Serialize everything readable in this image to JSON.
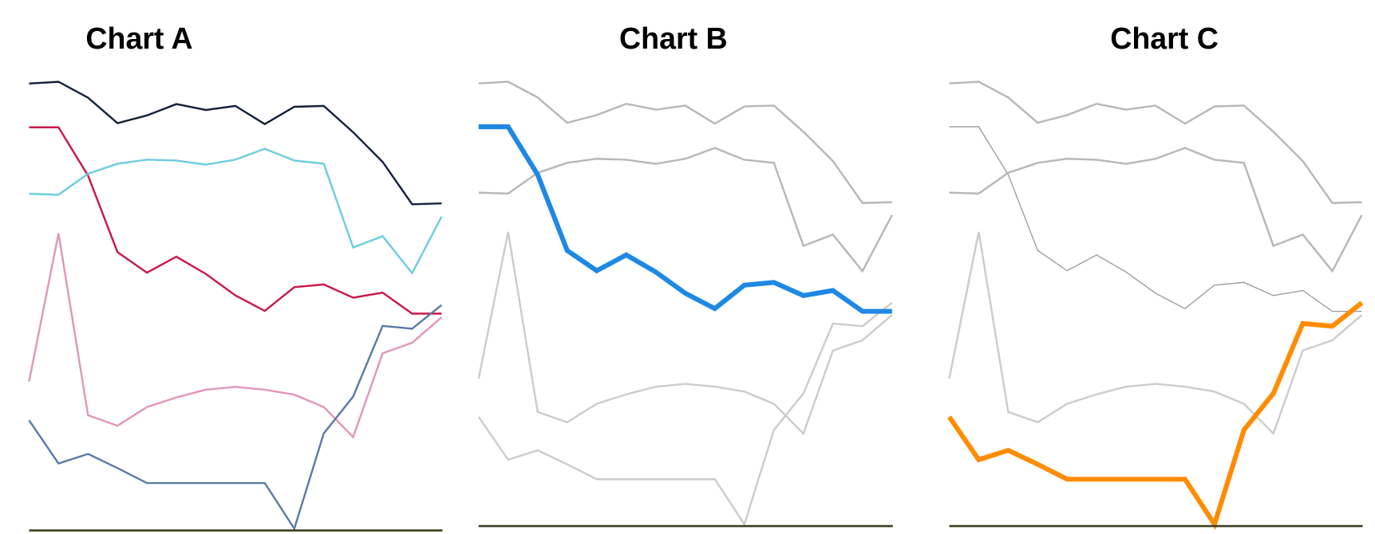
{
  "chart_data": [
    {
      "type": "line",
      "title": "Chart A",
      "xlabel": "",
      "ylabel": "",
      "x": [
        1,
        2,
        3,
        4,
        5,
        6,
        7,
        8,
        9,
        10,
        11,
        12,
        13,
        14,
        15
      ],
      "ylim": [
        0,
        100
      ],
      "grid": false,
      "legend": "none",
      "highlight": null,
      "series": [
        {
          "name": "navy",
          "color": "#14213d",
          "values": [
            98.1,
            98.5,
            95.0,
            89.4,
            91.1,
            93.6,
            92.3,
            93.2,
            89.2,
            93.0,
            93.2,
            87.4,
            80.9,
            71.6,
            71.8
          ]
        },
        {
          "name": "crimson",
          "color": "#c9184a",
          "values": [
            88.5,
            88.5,
            77.9,
            61.1,
            56.6,
            60.1,
            56.3,
            51.6,
            48.2,
            53.4,
            54.0,
            51.1,
            52.2,
            47.6,
            47.6
          ]
        },
        {
          "name": "cyan",
          "color": "#6ccde0",
          "values": [
            73.9,
            73.7,
            78.3,
            80.5,
            81.4,
            81.2,
            80.3,
            81.4,
            83.8,
            81.2,
            80.5,
            62.1,
            64.6,
            56.5,
            68.9
          ]
        },
        {
          "name": "pink",
          "color": "#e296bb",
          "values": [
            32.7,
            65.2,
            25.3,
            23.0,
            27.1,
            29.2,
            30.9,
            31.5,
            30.9,
            29.8,
            27.1,
            20.5,
            38.9,
            41.2,
            46.8
          ]
        },
        {
          "name": "slate",
          "color": "#5a7aa8",
          "values": [
            24.2,
            14.7,
            16.8,
            13.7,
            10.4,
            10.4,
            10.4,
            10.4,
            10.4,
            0.4,
            21.3,
            29.4,
            44.9,
            44.3,
            49.5
          ]
        }
      ]
    },
    {
      "type": "line",
      "title": "Chart B",
      "xlabel": "",
      "ylabel": "",
      "x": [
        1,
        2,
        3,
        4,
        5,
        6,
        7,
        8,
        9,
        10,
        11,
        12,
        13,
        14,
        15
      ],
      "ylim": [
        0,
        100
      ],
      "grid": false,
      "legend": "none",
      "highlight": "crimson",
      "highlight_color": "#1e88e5",
      "series": [
        {
          "name": "navy",
          "color": "#b7b7b7",
          "values": [
            98.1,
            98.5,
            95.0,
            89.4,
            91.1,
            93.6,
            92.3,
            93.2,
            89.2,
            93.0,
            93.2,
            87.4,
            80.9,
            71.6,
            71.8
          ]
        },
        {
          "name": "crimson",
          "color": "#1e88e5",
          "values": [
            88.5,
            88.5,
            77.9,
            61.1,
            56.6,
            60.1,
            56.3,
            51.6,
            48.2,
            53.4,
            54.0,
            51.1,
            52.2,
            47.6,
            47.6
          ]
        },
        {
          "name": "cyan",
          "color": "#b7b7b7",
          "values": [
            73.9,
            73.7,
            78.3,
            80.5,
            81.4,
            81.2,
            80.3,
            81.4,
            83.8,
            81.2,
            80.5,
            62.1,
            64.6,
            56.5,
            68.9
          ]
        },
        {
          "name": "pink",
          "color": "#cccccc",
          "values": [
            32.7,
            65.2,
            25.3,
            23.0,
            27.1,
            29.2,
            30.9,
            31.5,
            30.9,
            29.8,
            27.1,
            20.5,
            38.9,
            41.2,
            46.8
          ]
        },
        {
          "name": "slate",
          "color": "#cccccc",
          "values": [
            24.2,
            14.7,
            16.8,
            13.7,
            10.4,
            10.4,
            10.4,
            10.4,
            10.4,
            0.4,
            21.3,
            29.4,
            44.9,
            44.3,
            49.5
          ]
        }
      ]
    },
    {
      "type": "line",
      "title": "Chart C",
      "xlabel": "",
      "ylabel": "",
      "x": [
        1,
        2,
        3,
        4,
        5,
        6,
        7,
        8,
        9,
        10,
        11,
        12,
        13,
        14,
        15
      ],
      "ylim": [
        0,
        100
      ],
      "grid": false,
      "legend": "none",
      "highlight": "slate",
      "highlight_color": "#ff8c00",
      "series": [
        {
          "name": "navy",
          "color": "#b7b7b7",
          "values": [
            98.1,
            98.5,
            95.0,
            89.4,
            91.1,
            93.6,
            92.3,
            93.2,
            89.2,
            93.0,
            93.2,
            87.4,
            80.9,
            71.6,
            71.8
          ]
        },
        {
          "name": "crimson",
          "color": "#999999",
          "values": [
            88.5,
            88.5,
            77.9,
            61.1,
            56.6,
            60.1,
            56.3,
            51.6,
            48.2,
            53.4,
            54.0,
            51.1,
            52.2,
            47.6,
            47.6
          ]
        },
        {
          "name": "cyan",
          "color": "#b7b7b7",
          "values": [
            73.9,
            73.7,
            78.3,
            80.5,
            81.4,
            81.2,
            80.3,
            81.4,
            83.8,
            81.2,
            80.5,
            62.1,
            64.6,
            56.5,
            68.9
          ]
        },
        {
          "name": "pink",
          "color": "#cccccc",
          "values": [
            32.7,
            65.2,
            25.3,
            23.0,
            27.1,
            29.2,
            30.9,
            31.5,
            30.9,
            29.8,
            27.1,
            20.5,
            38.9,
            41.2,
            46.8
          ]
        },
        {
          "name": "slate",
          "color": "#ff8c00",
          "values": [
            24.2,
            14.7,
            16.8,
            13.7,
            10.4,
            10.4,
            10.4,
            10.4,
            10.4,
            0.4,
            21.3,
            29.4,
            44.9,
            44.3,
            49.5
          ]
        }
      ]
    }
  ],
  "panels": [
    {
      "title": "Chart A"
    },
    {
      "title": "Chart B"
    },
    {
      "title": "Chart C"
    }
  ]
}
